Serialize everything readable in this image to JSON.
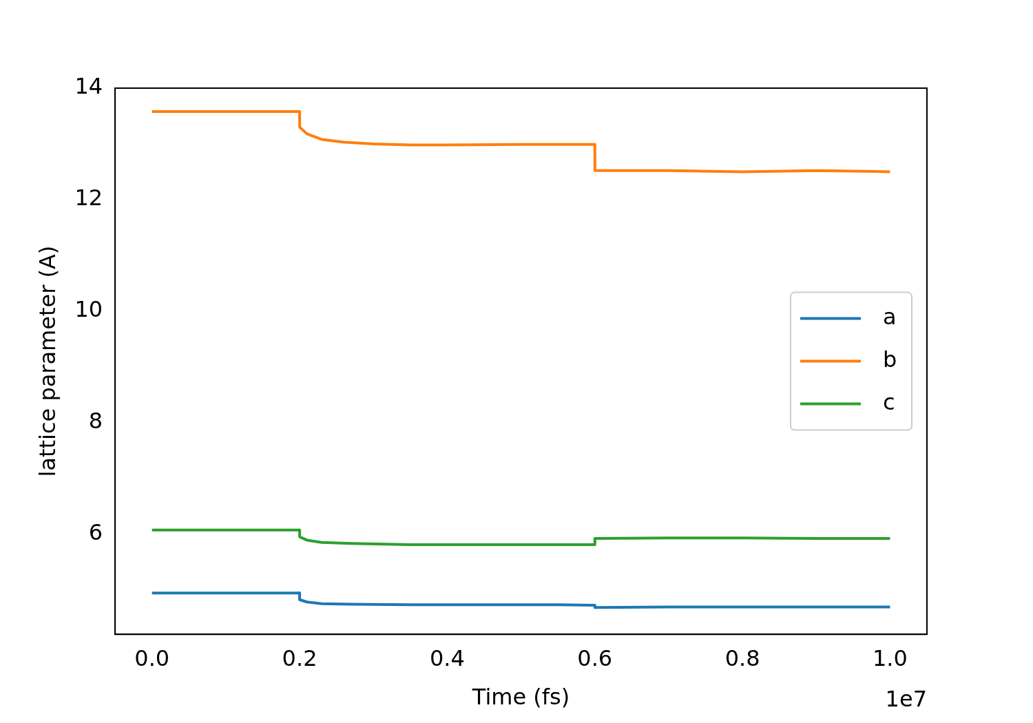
{
  "chart_data": {
    "type": "line",
    "xlabel": "Time (fs)",
    "ylabel": "lattice parameter (A)",
    "annotations": [
      "1e7"
    ],
    "xlim": [
      -0.05,
      1.05
    ],
    "xticks": [
      {
        "value": 0,
        "label": "0.0"
      },
      {
        "value": 0.2,
        "label": "0.2"
      },
      {
        "value": 0.4,
        "label": "0.4"
      },
      {
        "value": 0.6,
        "label": "0.6"
      },
      {
        "value": 0.8,
        "label": "0.8"
      },
      {
        "value": 1,
        "label": "1.0"
      }
    ],
    "ylim": [
      4.2,
      14
    ],
    "yticks": [
      6,
      8,
      10,
      12,
      14
    ],
    "grid": false,
    "legend": "right",
    "line_style": "solid",
    "marker": "none",
    "series": [
      {
        "name": "a",
        "color": "#1f77b4",
        "x": [
          0,
          0.2,
          0.2001,
          0.21,
          0.23,
          0.27,
          0.35,
          0.45,
          0.55,
          0.6,
          0.6001,
          0.7,
          0.8,
          0.9,
          1.0
        ],
        "values": [
          4.94,
          4.94,
          4.82,
          4.78,
          4.75,
          4.74,
          4.73,
          4.73,
          4.73,
          4.72,
          4.68,
          4.69,
          4.69,
          4.69,
          4.69
        ]
      },
      {
        "name": "b",
        "color": "#ff7f0e",
        "x": [
          0,
          0.2,
          0.2001,
          0.21,
          0.23,
          0.26,
          0.3,
          0.35,
          0.4,
          0.5,
          0.6,
          0.6001,
          0.7,
          0.8,
          0.9,
          1.0
        ],
        "values": [
          13.58,
          13.58,
          13.3,
          13.18,
          13.08,
          13.03,
          13.0,
          12.98,
          12.98,
          12.99,
          12.99,
          12.52,
          12.52,
          12.5,
          12.52,
          12.5
        ]
      },
      {
        "name": "c",
        "color": "#2ca02c",
        "x": [
          0,
          0.2,
          0.2001,
          0.21,
          0.23,
          0.27,
          0.35,
          0.45,
          0.55,
          0.6,
          0.6001,
          0.7,
          0.8,
          0.9,
          1.0
        ],
        "values": [
          6.07,
          6.07,
          5.95,
          5.89,
          5.85,
          5.83,
          5.81,
          5.81,
          5.81,
          5.81,
          5.92,
          5.93,
          5.93,
          5.92,
          5.92
        ]
      }
    ]
  }
}
